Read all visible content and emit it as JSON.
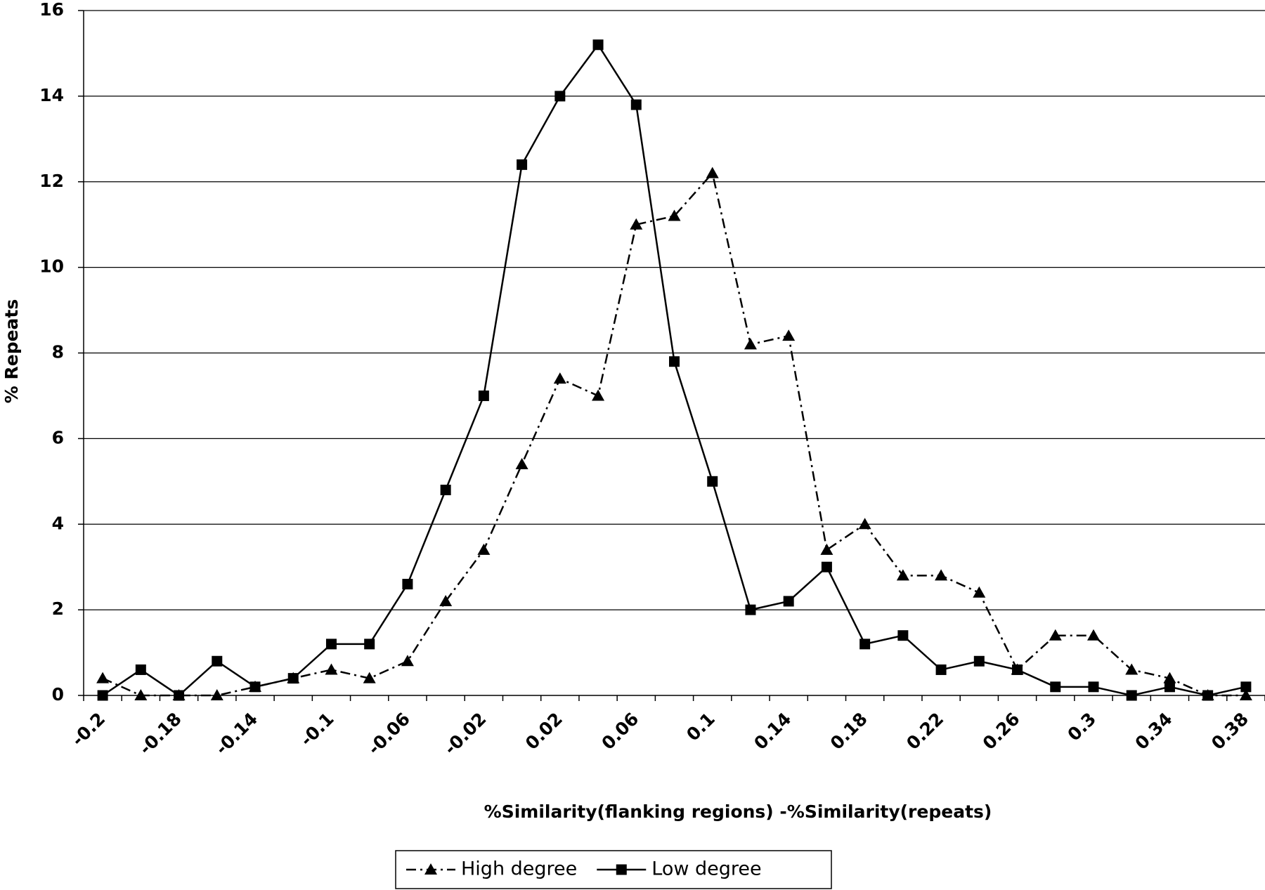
{
  "chart_data": {
    "type": "line",
    "x_label": "%Similarity(flanking regions) -%Similarity(repeats)",
    "y_label": "% Repeats",
    "categories": [
      "-0.2",
      null,
      "-0.18",
      null,
      "-0.14",
      null,
      "-0.1",
      null,
      "-0.06",
      null,
      "-0.02",
      null,
      "0.02",
      null,
      "0.06",
      null,
      "0.1",
      null,
      "0.14",
      null,
      "0.18",
      null,
      "0.22",
      null,
      "0.26",
      null,
      "0.3",
      null,
      "0.34",
      null,
      "0.38"
    ],
    "series": [
      {
        "name": "High degree",
        "color": "#000000",
        "marker": "triangle",
        "line_style": "dashdot",
        "values": [
          0.4,
          0,
          0,
          0,
          0.2,
          0.4,
          0.6,
          0.4,
          0.8,
          2.2,
          3.4,
          5.4,
          7.4,
          7.0,
          11.0,
          11.2,
          12.2,
          8.2,
          8.4,
          3.4,
          4.0,
          2.8,
          2.8,
          2.4,
          0.6,
          1.4,
          1.4,
          0.6,
          0.4,
          0,
          0
        ]
      },
      {
        "name": "Low degree",
        "color": "#000000",
        "marker": "square",
        "line_style": "solid",
        "values": [
          0,
          0.6,
          0,
          0.8,
          0.2,
          0.4,
          1.2,
          1.2,
          2.6,
          4.8,
          7.0,
          12.4,
          14.0,
          15.2,
          13.8,
          7.8,
          5.0,
          2.0,
          2.2,
          3.0,
          1.2,
          1.4,
          0.6,
          0.8,
          0.6,
          0.2,
          0.2,
          0,
          0.2,
          0,
          0.2
        ]
      }
    ],
    "ylim": [
      0,
      16
    ],
    "yticks": [
      0,
      2,
      4,
      6,
      8,
      10,
      12,
      14,
      16
    ],
    "grid": true,
    "legend": "bottom"
  }
}
